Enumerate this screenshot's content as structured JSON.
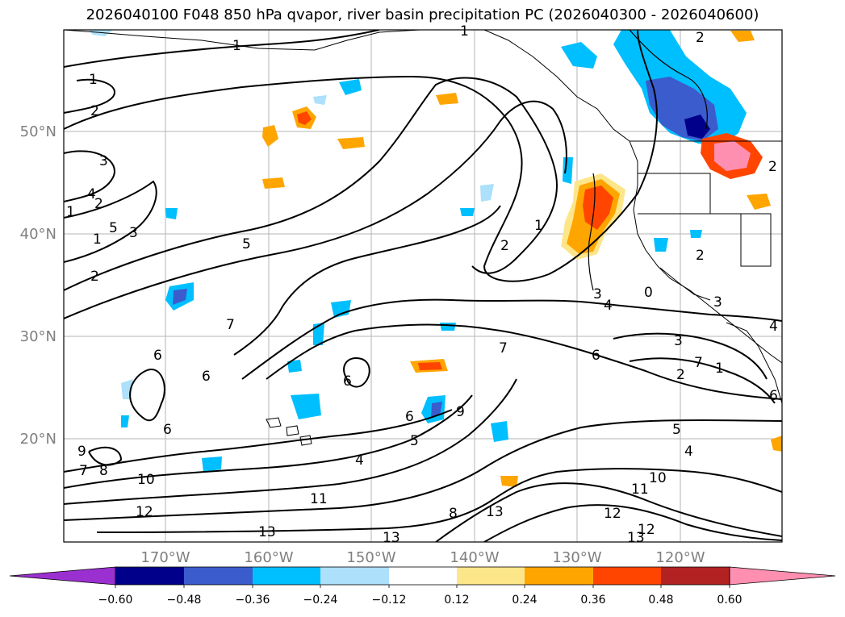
{
  "title": "2026040100 F048 850 hPa qvapor, river basin precipitation PC (2026040300 - 2026040600)",
  "map": {
    "lat_ticks": [
      "50°N",
      "40°N",
      "30°N",
      "20°N"
    ],
    "lon_ticks": [
      "170°W",
      "160°W",
      "150°W",
      "140°W",
      "130°W",
      "120°W"
    ],
    "contour_labels": [
      "1",
      "1",
      "2",
      "3",
      "4",
      "2",
      "1",
      "3",
      "5",
      "1",
      "2",
      "5",
      "2",
      "1",
      "2",
      "1",
      "3",
      "4",
      "0",
      "3",
      "2",
      "1",
      "7",
      "6",
      "6",
      "6",
      "7",
      "6",
      "6",
      "6",
      "9",
      "7",
      "8",
      "5",
      "4",
      "9",
      "5",
      "4",
      "10",
      "11",
      "12",
      "13",
      "13",
      "8",
      "13",
      "12",
      "13",
      "12",
      "11",
      "10",
      "7",
      "3",
      "2",
      "4",
      "6",
      "2"
    ],
    "colors": {
      "violet": "#9b30d0",
      "navy": "#00008b",
      "royal": "#3a5ccc",
      "deepsky": "#00bfff",
      "lightblue": "#ade0fa",
      "white": "#ffffff",
      "lightyellow": "#fde68a",
      "orange": "#ffa500",
      "orangered": "#ff4500",
      "firebrick": "#b22222",
      "pink": "#ff8fb0"
    }
  },
  "colorbar": {
    "ticks": [
      "−0.60",
      "−0.48",
      "−0.36",
      "−0.24",
      "−0.12",
      "0.12",
      "0.24",
      "0.36",
      "0.48",
      "0.60"
    ],
    "bins": [
      "#9b30d0",
      "#00008b",
      "#3a5ccc",
      "#00bfff",
      "#ade0fa",
      "#ffffff",
      "#fde68a",
      "#ffa500",
      "#ff4500",
      "#b22222",
      "#ff8fb0"
    ]
  }
}
